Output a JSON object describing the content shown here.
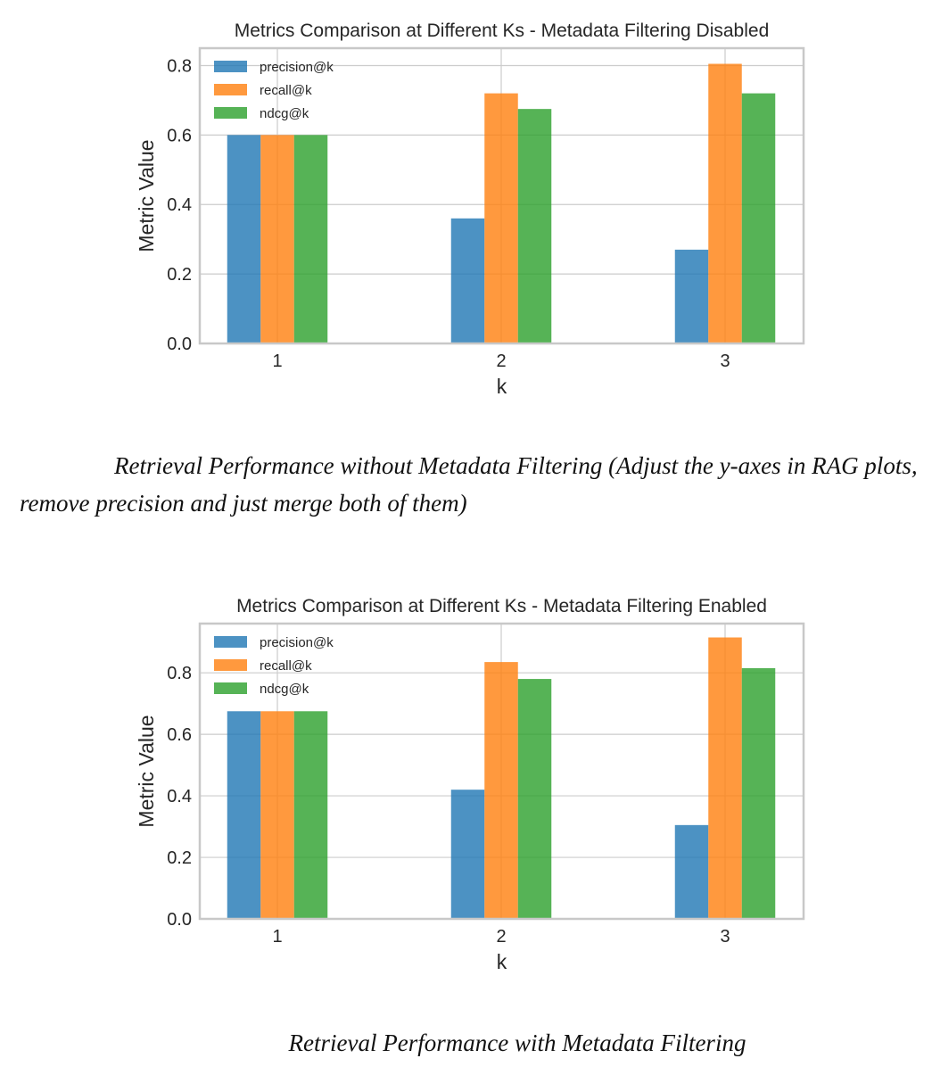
{
  "colors": {
    "precision": "#1f77b4",
    "recall": "#ff7f0e",
    "ndcg": "#2ca02c",
    "grid": "#cccccc",
    "axes": "#c8c8c8",
    "background": "#ffffff"
  },
  "charts": [
    {
      "caption": "Retrieval Performance without Metadata Filtering (Adjust the y-axes in RAG plots, remove precision and just merge both of them)"
    },
    {
      "caption": "Retrieval Performance with Metadata Filtering"
    }
  ],
  "chart_data": [
    {
      "type": "bar",
      "title": "Metrics Comparison at Different Ks - Metadata Filtering Disabled",
      "xlabel": "k",
      "ylabel": "Metric Value",
      "categories": [
        "1",
        "2",
        "3"
      ],
      "ylim": [
        0,
        0.85
      ],
      "yticks": [
        "0.0",
        "0.2",
        "0.4",
        "0.6",
        "0.8"
      ],
      "grid": true,
      "legend": "top-left",
      "series": [
        {
          "name": "precision@k",
          "color": "#1f77b4",
          "values": [
            0.6,
            0.36,
            0.27
          ]
        },
        {
          "name": "recall@k",
          "color": "#ff7f0e",
          "values": [
            0.6,
            0.72,
            0.805
          ]
        },
        {
          "name": "ndcg@k",
          "color": "#2ca02c",
          "values": [
            0.6,
            0.675,
            0.72
          ]
        }
      ]
    },
    {
      "type": "bar",
      "title": "Metrics Comparison at Different Ks - Metadata Filtering Enabled",
      "xlabel": "k",
      "ylabel": "Metric Value",
      "categories": [
        "1",
        "2",
        "3"
      ],
      "ylim": [
        0,
        0.96
      ],
      "yticks": [
        "0.0",
        "0.2",
        "0.4",
        "0.6",
        "0.8"
      ],
      "grid": true,
      "legend": "top-left",
      "series": [
        {
          "name": "precision@k",
          "color": "#1f77b4",
          "values": [
            0.675,
            0.42,
            0.305
          ]
        },
        {
          "name": "recall@k",
          "color": "#ff7f0e",
          "values": [
            0.675,
            0.835,
            0.915
          ]
        },
        {
          "name": "ndcg@k",
          "color": "#2ca02c",
          "values": [
            0.675,
            0.78,
            0.815
          ]
        }
      ]
    }
  ]
}
